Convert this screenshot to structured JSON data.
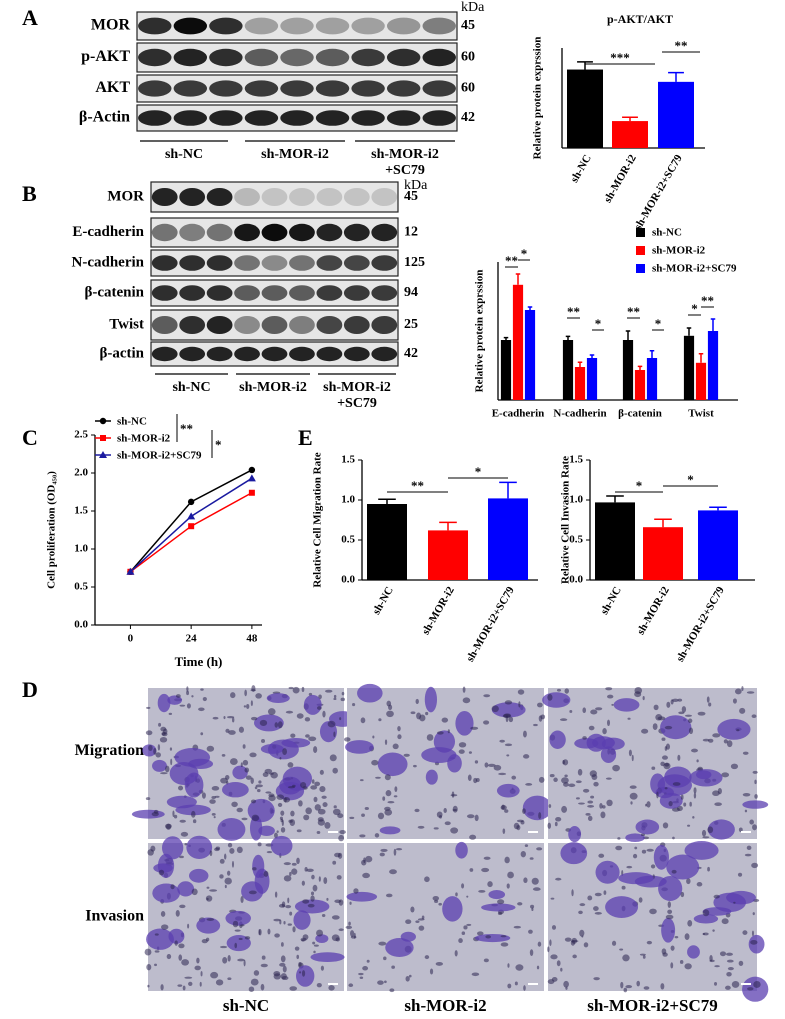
{
  "panel_labels": [
    "A",
    "B",
    "C",
    "D",
    "E"
  ],
  "blots": [
    {
      "unit": "kDa",
      "rows": [
        {
          "label": "MOR",
          "kda": "45"
        },
        {
          "label": "p-AKT",
          "kda": "60"
        },
        {
          "label": "AKT",
          "kda": "60"
        },
        {
          "label": "β-Actin",
          "kda": "42"
        }
      ],
      "groups": [
        [
          "sh-NC"
        ],
        [
          "sh-MOR-i2"
        ],
        [
          "sh-MOR-i2",
          "+SC79"
        ]
      ]
    },
    {
      "unit": "kDa",
      "rows": [
        {
          "label": "MOR",
          "kda": "45"
        },
        {
          "label": "E-cadherin",
          "kda": "12"
        },
        {
          "label": "N-cadherin",
          "kda": "125"
        },
        {
          "label": "β-catenin",
          "kda": "94"
        },
        {
          "label": "Twist",
          "kda": "25"
        },
        {
          "label": "β-actin",
          "kda": "42"
        }
      ],
      "groups": [
        [
          "sh-NC"
        ],
        [
          "sh-MOR-i2"
        ],
        [
          "sh-MOR-i2",
          "+SC79"
        ]
      ]
    }
  ],
  "micrographs": {
    "rows": [
      "Migration",
      "Invasion"
    ],
    "columns": [
      "sh-NC",
      "sh-MOR-i2",
      "sh-MOR-i2+SC79"
    ]
  },
  "chart_data": [
    {
      "type": "bar",
      "title": "p-AKT/AKT",
      "y_label": "Relative protein exprssion",
      "categories": [
        "sh-NC",
        "sh-MOR-i2",
        "sh-MOR-i2+SC79"
      ],
      "values": [
        1.02,
        0.35,
        0.86
      ],
      "errors": [
        0.1,
        0.05,
        0.12
      ],
      "colors": [
        "#000000",
        "#ff0000",
        "#0000ff"
      ],
      "ylim": [
        0,
        1.3
      ],
      "annotations": [
        "***",
        "**"
      ]
    },
    {
      "type": "bar",
      "y_label": "Relative protein exprssion",
      "categories": [
        "E-cadherin",
        "N-cadherin",
        "β-catenin",
        "Twist"
      ],
      "series": [
        {
          "name": "sh-NC",
          "color": "#000000",
          "values": [
            1.0,
            1.0,
            1.0,
            1.07
          ],
          "errors": [
            0.04,
            0.06,
            0.15,
            0.13
          ]
        },
        {
          "name": "sh-MOR-i2",
          "color": "#ff0000",
          "values": [
            1.92,
            0.55,
            0.5,
            0.62
          ],
          "errors": [
            0.18,
            0.08,
            0.06,
            0.15
          ]
        },
        {
          "name": "sh-MOR-i2+SC79",
          "color": "#0000ff",
          "values": [
            1.5,
            0.7,
            0.7,
            1.15
          ],
          "errors": [
            0.05,
            0.05,
            0.12,
            0.2
          ]
        }
      ],
      "ylim": [
        0,
        2.3
      ],
      "legend": "top-right",
      "annotations": [
        "**",
        "*",
        "**",
        "*",
        "**",
        "*",
        "*",
        "**"
      ]
    },
    {
      "type": "line",
      "y_label": "Cell proliferation (OD₄₅₀)",
      "x_label": "Time (h)",
      "x": [
        0,
        24,
        48
      ],
      "series": [
        {
          "name": "sh-NC",
          "color": "#000000",
          "marker": "circle",
          "values": [
            0.7,
            1.62,
            2.04
          ]
        },
        {
          "name": "sh-MOR-i2",
          "color": "#ff0000",
          "marker": "square",
          "values": [
            0.7,
            1.3,
            1.74
          ]
        },
        {
          "name": "sh-MOR-i2+SC79",
          "color": "#1a1aa0",
          "marker": "triangle",
          "values": [
            0.7,
            1.43,
            1.93
          ]
        }
      ],
      "xlim": [
        -14,
        52
      ],
      "xticks": [
        0,
        24,
        48
      ],
      "ylim": [
        0,
        2.5
      ],
      "yticks": [
        {
          "value": 0,
          "label": "0.0"
        },
        {
          "value": 0.5,
          "label": "0.5"
        },
        {
          "value": 1,
          "label": "1.0"
        },
        {
          "value": 1.5,
          "label": "1.5"
        },
        {
          "value": 2,
          "label": "2.0"
        },
        {
          "value": 2.5,
          "label": "2.5"
        }
      ],
      "legend": "top-left",
      "annotations": [
        "**",
        "*"
      ]
    },
    {
      "type": "bar",
      "y_label": "Relative Cell Migration Rate",
      "categories": [
        "sh-NC",
        "sh-MOR-i2",
        "sh-MOR-i2+SC79"
      ],
      "values": [
        0.95,
        0.62,
        1.02
      ],
      "errors": [
        0.06,
        0.1,
        0.2
      ],
      "colors": [
        "#000000",
        "#ff0000",
        "#0000ff"
      ],
      "ylim": [
        0,
        1.5
      ],
      "yticks": [
        {
          "value": 0,
          "label": "0.0"
        },
        {
          "value": 0.5,
          "label": "0.5"
        },
        {
          "value": 1,
          "label": "1.0"
        },
        {
          "value": 1.5,
          "label": "1.5"
        }
      ],
      "annotations": [
        "**",
        "*"
      ]
    },
    {
      "type": "bar",
      "y_label": "Relative Cell Invasion Rate",
      "categories": [
        "sh-NC",
        "sh-MOR-i2",
        "sh-MOR-i2+SC79"
      ],
      "values": [
        0.97,
        0.66,
        0.87
      ],
      "errors": [
        0.08,
        0.1,
        0.04
      ],
      "colors": [
        "#000000",
        "#ff0000",
        "#0000ff"
      ],
      "ylim": [
        0,
        1.5
      ],
      "yticks": [
        {
          "value": 0,
          "label": "0.0"
        },
        {
          "value": 0.5,
          "label": "0.5"
        },
        {
          "value": 1,
          "label": "1.0"
        },
        {
          "value": 1.5,
          "label": "1.5"
        }
      ],
      "annotations": [
        "*",
        "*"
      ]
    }
  ]
}
